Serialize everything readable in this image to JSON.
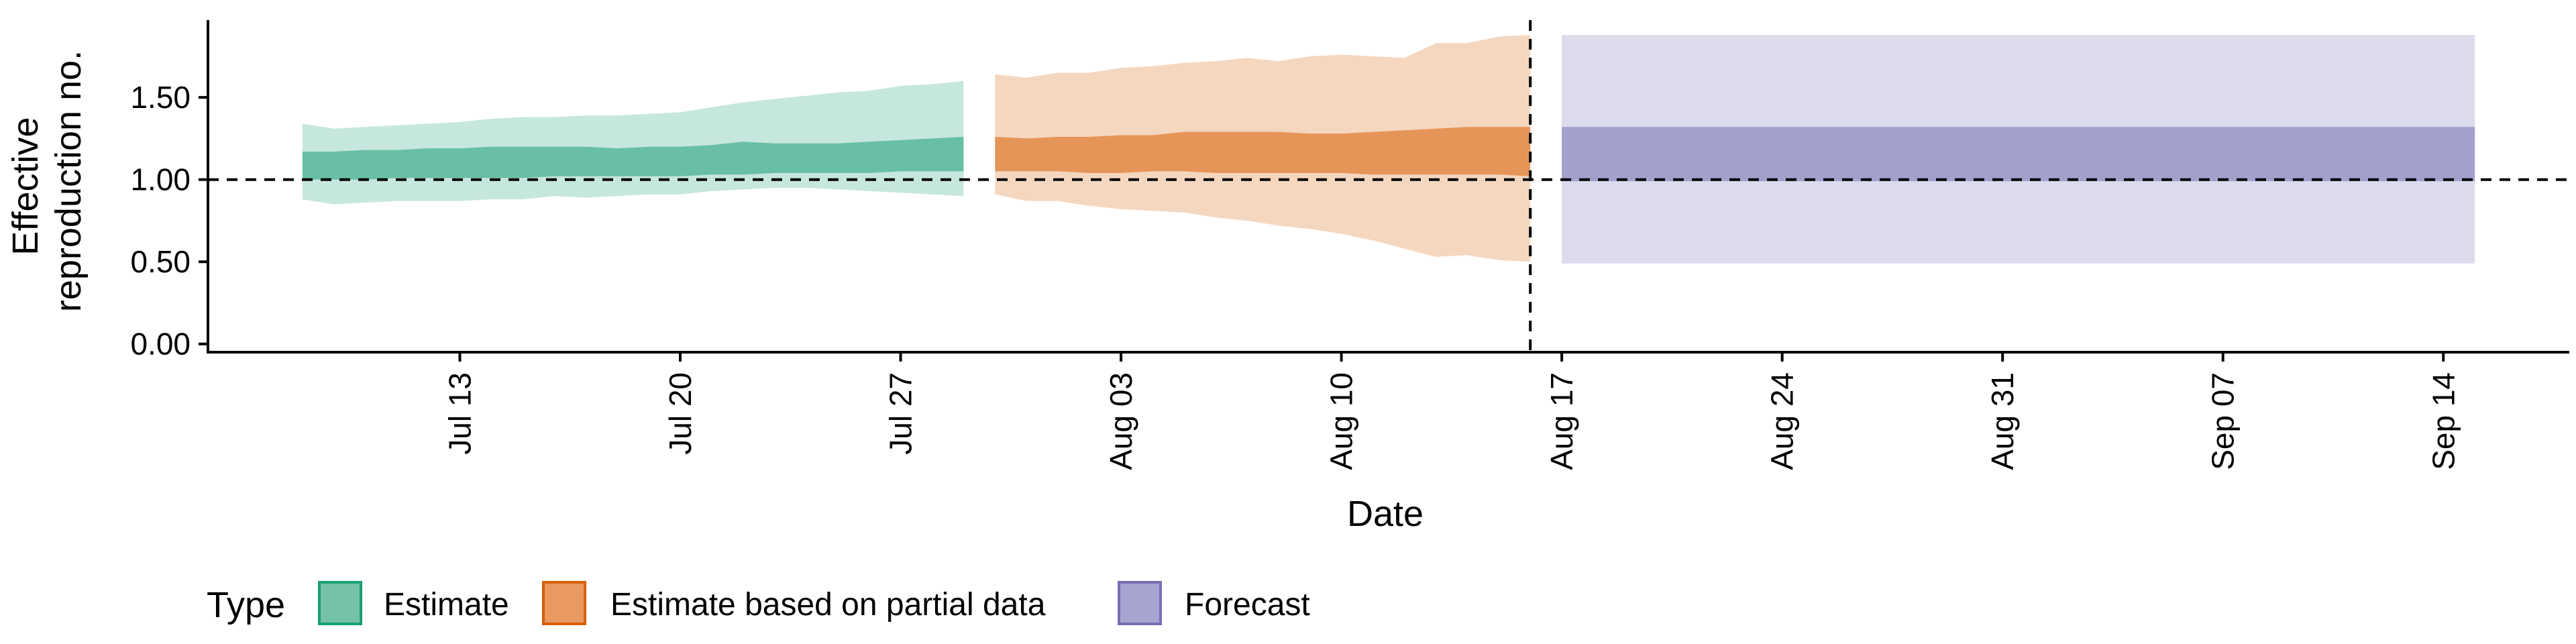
{
  "chart_data": {
    "type": "area",
    "xlabel": "Date",
    "ylabel": [
      "Effective",
      "reproduction no."
    ],
    "ylim": [
      -0.05,
      1.97
    ],
    "xlim": [
      "2020-07-05",
      "2020-09-18"
    ],
    "y_ticks": [
      "0.00",
      "0.50",
      "1.00",
      "1.50"
    ],
    "x_ticks": [
      {
        "date": "2020-07-13",
        "label": "Jul 13"
      },
      {
        "date": "2020-07-20",
        "label": "Jul 20"
      },
      {
        "date": "2020-07-27",
        "label": "Jul 27"
      },
      {
        "date": "2020-08-03",
        "label": "Aug 03"
      },
      {
        "date": "2020-08-10",
        "label": "Aug 10"
      },
      {
        "date": "2020-08-17",
        "label": "Aug 17"
      },
      {
        "date": "2020-08-24",
        "label": "Aug 24"
      },
      {
        "date": "2020-08-31",
        "label": "Aug 31"
      },
      {
        "date": "2020-09-07",
        "label": "Sep 07"
      },
      {
        "date": "2020-09-14",
        "label": "Sep 14"
      }
    ],
    "reference_lines": {
      "horizontal_y": 1.0,
      "vertical_date": "2020-08-16"
    },
    "grid": false,
    "legend_position": "bottom-left",
    "series": [
      {
        "name": "Estimate",
        "color": "#1b9e77",
        "dates": [
          "2020-07-08",
          "2020-07-09",
          "2020-07-10",
          "2020-07-11",
          "2020-07-12",
          "2020-07-13",
          "2020-07-14",
          "2020-07-15",
          "2020-07-16",
          "2020-07-17",
          "2020-07-18",
          "2020-07-19",
          "2020-07-20",
          "2020-07-21",
          "2020-07-22",
          "2020-07-23",
          "2020-07-24",
          "2020-07-25",
          "2020-07-26",
          "2020-07-27",
          "2020-07-28",
          "2020-07-29"
        ],
        "lower_90": [
          0.88,
          0.85,
          0.86,
          0.87,
          0.87,
          0.87,
          0.88,
          0.88,
          0.9,
          0.89,
          0.9,
          0.91,
          0.91,
          0.93,
          0.94,
          0.95,
          0.95,
          0.94,
          0.93,
          0.92,
          0.91,
          0.9
        ],
        "upper_90": [
          1.34,
          1.31,
          1.32,
          1.33,
          1.34,
          1.35,
          1.37,
          1.38,
          1.38,
          1.39,
          1.39,
          1.4,
          1.41,
          1.44,
          1.47,
          1.49,
          1.51,
          1.53,
          1.54,
          1.57,
          1.58,
          1.6
        ],
        "lower_50": [
          1.0,
          1.0,
          1.0,
          1.01,
          1.01,
          1.01,
          1.01,
          1.01,
          1.02,
          1.02,
          1.02,
          1.02,
          1.02,
          1.03,
          1.03,
          1.04,
          1.04,
          1.04,
          1.04,
          1.05,
          1.05,
          1.05
        ],
        "upper_50": [
          1.17,
          1.17,
          1.18,
          1.18,
          1.19,
          1.19,
          1.2,
          1.2,
          1.2,
          1.2,
          1.19,
          1.2,
          1.2,
          1.21,
          1.23,
          1.22,
          1.22,
          1.22,
          1.23,
          1.24,
          1.25,
          1.26
        ]
      },
      {
        "name": "Estimate based on partial data",
        "color": "#d95f02",
        "dates": [
          "2020-07-30",
          "2020-07-31",
          "2020-08-01",
          "2020-08-02",
          "2020-08-03",
          "2020-08-04",
          "2020-08-05",
          "2020-08-06",
          "2020-08-07",
          "2020-08-08",
          "2020-08-09",
          "2020-08-10",
          "2020-08-11",
          "2020-08-12",
          "2020-08-13",
          "2020-08-14",
          "2020-08-15",
          "2020-08-16"
        ],
        "lower_90": [
          0.91,
          0.87,
          0.87,
          0.84,
          0.82,
          0.81,
          0.8,
          0.77,
          0.75,
          0.72,
          0.7,
          0.67,
          0.63,
          0.58,
          0.53,
          0.54,
          0.51,
          0.5
        ],
        "upper_90": [
          1.64,
          1.62,
          1.65,
          1.65,
          1.68,
          1.69,
          1.71,
          1.72,
          1.74,
          1.72,
          1.75,
          1.76,
          1.75,
          1.74,
          1.83,
          1.83,
          1.87,
          1.88
        ],
        "lower_50": [
          1.05,
          1.05,
          1.05,
          1.04,
          1.04,
          1.05,
          1.05,
          1.04,
          1.04,
          1.04,
          1.04,
          1.04,
          1.03,
          1.03,
          1.03,
          1.03,
          1.03,
          1.02
        ],
        "upper_50": [
          1.26,
          1.25,
          1.26,
          1.26,
          1.27,
          1.27,
          1.29,
          1.29,
          1.29,
          1.29,
          1.28,
          1.28,
          1.29,
          1.3,
          1.31,
          1.32,
          1.32,
          1.32
        ]
      },
      {
        "name": "Forecast",
        "color": "#7570b3",
        "dates": [
          "2020-08-17",
          "2020-09-15"
        ],
        "lower_90": [
          0.49,
          0.49
        ],
        "upper_90": [
          1.88,
          1.88
        ],
        "lower_50": [
          0.99,
          0.99
        ],
        "upper_50": [
          1.32,
          1.32
        ]
      }
    ]
  },
  "legend": {
    "title": "Type",
    "items": [
      {
        "label": "Estimate",
        "fill": "#74c3a8",
        "stroke": "#1b9e77"
      },
      {
        "label": "Estimate based on partial data",
        "fill": "#e89a60",
        "stroke": "#d95f02"
      },
      {
        "label": "Forecast",
        "fill": "#a8a4d2",
        "stroke": "#7570b3"
      }
    ]
  }
}
